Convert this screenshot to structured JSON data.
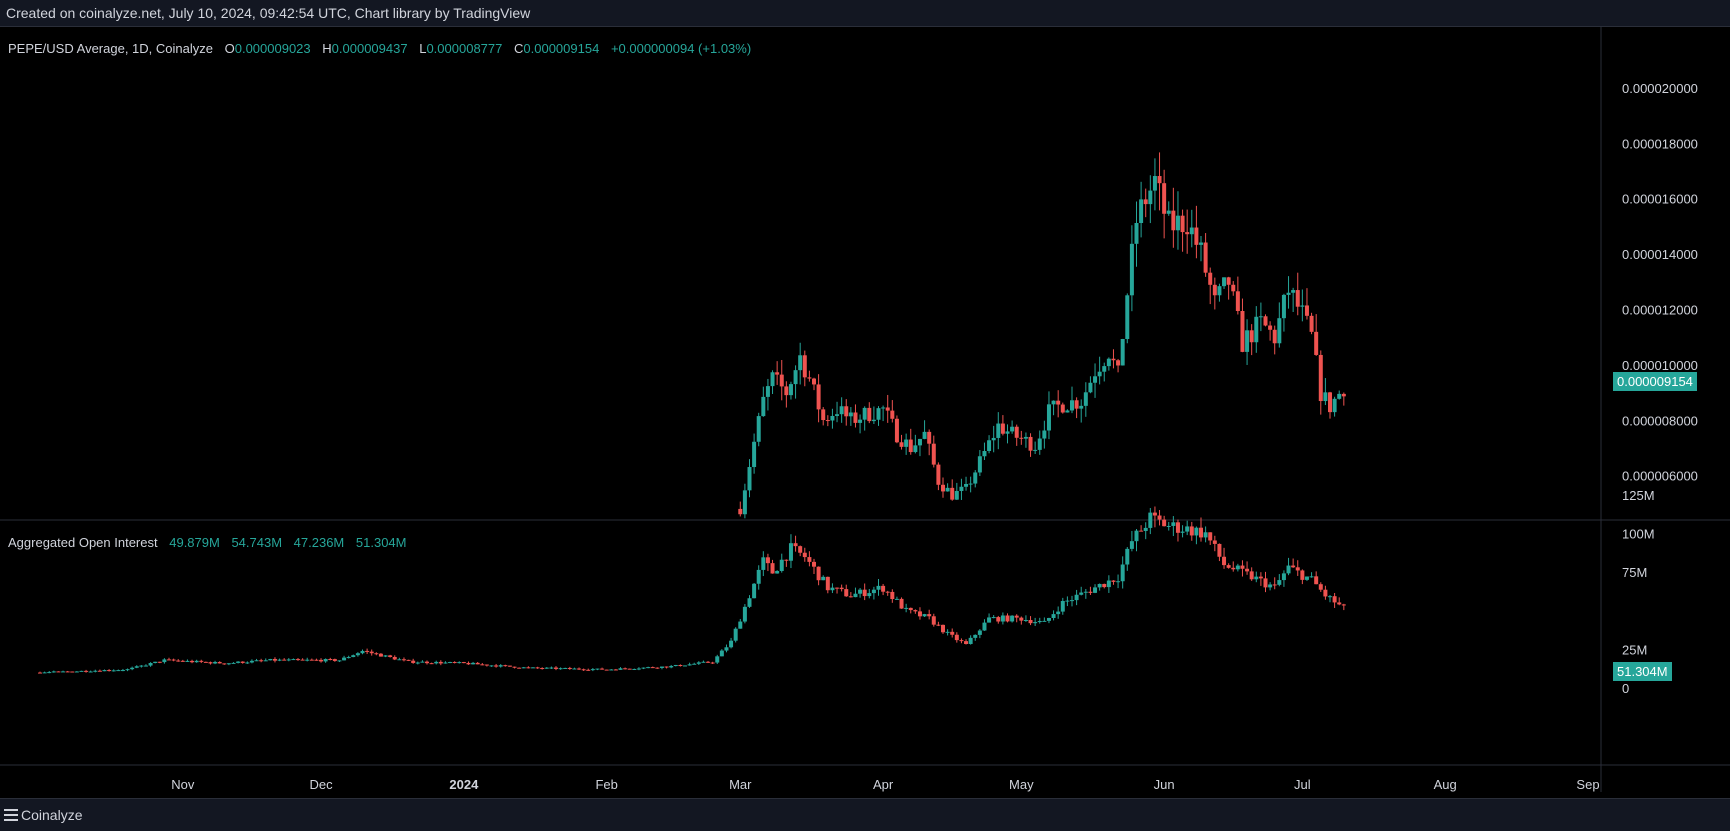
{
  "header": {
    "created_text": "Created on coinalyze.net, July 10, 2024, 09:42:54 UTC, Chart library by TradingView"
  },
  "footer": {
    "logo_text": "Coinalyze",
    "logo_icon": "stacked-lines-icon"
  },
  "colors": {
    "up": "#26a69a",
    "down": "#ef5350",
    "background": "#000000",
    "grid_border": "#2a2e39",
    "text": "#d1d4dc"
  },
  "price_panel": {
    "symbol": "PEPE/USD Average, 1D, Coinalyze",
    "o_label": "O",
    "o": "0.000009023",
    "h_label": "H",
    "h": "0.000009437",
    "l_label": "L",
    "l": "0.000008777",
    "c_label": "C",
    "c": "0.000009154",
    "change": "+0.000000094 (+1.03%)",
    "last_price_tag": "0.000009154",
    "y_ticks": [
      "0.000020000",
      "0.000018000",
      "0.000016000",
      "0.000014000",
      "0.000012000",
      "0.000010000",
      "0.000008000",
      "0.000006000"
    ]
  },
  "oi_panel": {
    "title": "Aggregated Open Interest",
    "o": "49.879M",
    "h": "54.743M",
    "l": "47.236M",
    "c": "51.304M",
    "last_value_tag": "51.304M",
    "y_ticks": [
      "125M",
      "100M",
      "75M",
      "25M",
      "0"
    ]
  },
  "x_axis": {
    "labels": [
      "Nov",
      "Dec",
      "2024",
      "Feb",
      "Mar",
      "Apr",
      "May",
      "Jun",
      "Jul",
      "Aug",
      "Sep"
    ]
  },
  "chart_data": [
    {
      "type": "candlestick",
      "title": "PEPE/USD Average, 1D, Coinalyze",
      "x_range": [
        "2024-03-01",
        "2024-07-10"
      ],
      "ylim": [
        4.4e-06,
        2.22e-05
      ],
      "close_path": [
        [
          "2024-03-01",
          4.8e-06
        ],
        [
          "2024-03-04",
          7.2e-06
        ],
        [
          "2024-03-06",
          8.7e-06
        ],
        [
          "2024-03-08",
          9.5e-06
        ],
        [
          "2024-03-11",
          9e-06
        ],
        [
          "2024-03-14",
          1.03e-05
        ],
        [
          "2024-03-16",
          9.5e-06
        ],
        [
          "2024-03-19",
          8e-06
        ],
        [
          "2024-03-22",
          8.4e-06
        ],
        [
          "2024-03-25",
          8e-06
        ],
        [
          "2024-03-28",
          8.2e-06
        ],
        [
          "2024-04-01",
          8.4e-06
        ],
        [
          "2024-04-04",
          7.5e-06
        ],
        [
          "2024-04-07",
          7e-06
        ],
        [
          "2024-04-10",
          7.5e-06
        ],
        [
          "2024-04-13",
          5.8e-06
        ],
        [
          "2024-04-16",
          5.3e-06
        ],
        [
          "2024-04-19",
          5.5e-06
        ],
        [
          "2024-04-22",
          6.5e-06
        ],
        [
          "2024-04-26",
          7.8e-06
        ],
        [
          "2024-04-30",
          7.4e-06
        ],
        [
          "2024-05-04",
          7.1e-06
        ],
        [
          "2024-05-07",
          8.3e-06
        ],
        [
          "2024-05-10",
          8.6e-06
        ],
        [
          "2024-05-14",
          8.7e-06
        ],
        [
          "2024-05-17",
          9.8e-06
        ],
        [
          "2024-05-20",
          1.05e-05
        ],
        [
          "2024-05-22",
          9.6e-06
        ],
        [
          "2024-05-24",
          1.26e-05
        ],
        [
          "2024-05-26",
          1.52e-05
        ],
        [
          "2024-05-28",
          1.6e-05
        ],
        [
          "2024-05-30",
          1.66e-05
        ],
        [
          "2024-06-02",
          1.5e-05
        ],
        [
          "2024-06-06",
          1.52e-05
        ],
        [
          "2024-06-09",
          1.4e-05
        ],
        [
          "2024-06-12",
          1.22e-05
        ],
        [
          "2024-06-15",
          1.3e-05
        ],
        [
          "2024-06-18",
          1.08e-05
        ],
        [
          "2024-06-22",
          1.15e-05
        ],
        [
          "2024-06-25",
          1.1e-05
        ],
        [
          "2024-06-28",
          1.27e-05
        ],
        [
          "2024-07-01",
          1.18e-05
        ],
        [
          "2024-07-03",
          1.1e-05
        ],
        [
          "2024-07-05",
          9e-06
        ],
        [
          "2024-07-07",
          8.5e-06
        ],
        [
          "2024-07-10",
          9.2e-06
        ]
      ]
    },
    {
      "type": "candlestick",
      "title": "Aggregated Open Interest",
      "x_range": [
        "2023-10-01",
        "2024-07-10"
      ],
      "ylim": [
        0,
        125000000
      ],
      "close_path": [
        [
          "2023-10-01",
          10000000
        ],
        [
          "2023-10-20",
          12000000
        ],
        [
          "2023-10-28",
          18000000
        ],
        [
          "2023-11-10",
          16000000
        ],
        [
          "2023-11-20",
          18000000
        ],
        [
          "2023-12-05",
          18000000
        ],
        [
          "2023-12-10",
          24000000
        ],
        [
          "2023-12-20",
          17000000
        ],
        [
          "2024-01-01",
          16000000
        ],
        [
          "2024-01-15",
          13000000
        ],
        [
          "2024-02-01",
          12000000
        ],
        [
          "2024-02-15",
          14000000
        ],
        [
          "2024-02-24",
          17000000
        ],
        [
          "2024-02-28",
          30000000
        ],
        [
          "2024-03-03",
          60000000
        ],
        [
          "2024-03-06",
          82000000
        ],
        [
          "2024-03-08",
          75000000
        ],
        [
          "2024-03-12",
          90000000
        ],
        [
          "2024-03-15",
          85000000
        ],
        [
          "2024-03-20",
          65000000
        ],
        [
          "2024-03-25",
          60000000
        ],
        [
          "2024-04-01",
          65000000
        ],
        [
          "2024-04-06",
          50000000
        ],
        [
          "2024-04-11",
          45000000
        ],
        [
          "2024-04-15",
          35000000
        ],
        [
          "2024-04-19",
          28000000
        ],
        [
          "2024-04-24",
          45000000
        ],
        [
          "2024-05-01",
          45000000
        ],
        [
          "2024-05-06",
          42000000
        ],
        [
          "2024-05-10",
          55000000
        ],
        [
          "2024-05-17",
          65000000
        ],
        [
          "2024-05-22",
          72000000
        ],
        [
          "2024-05-25",
          95000000
        ],
        [
          "2024-05-29",
          110000000
        ],
        [
          "2024-06-02",
          105000000
        ],
        [
          "2024-06-06",
          103000000
        ],
        [
          "2024-06-10",
          100000000
        ],
        [
          "2024-06-14",
          80000000
        ],
        [
          "2024-06-20",
          72000000
        ],
        [
          "2024-06-25",
          65000000
        ],
        [
          "2024-06-28",
          78000000
        ],
        [
          "2024-07-03",
          70000000
        ],
        [
          "2024-07-06",
          60000000
        ],
        [
          "2024-07-10",
          51304000
        ]
      ]
    }
  ]
}
